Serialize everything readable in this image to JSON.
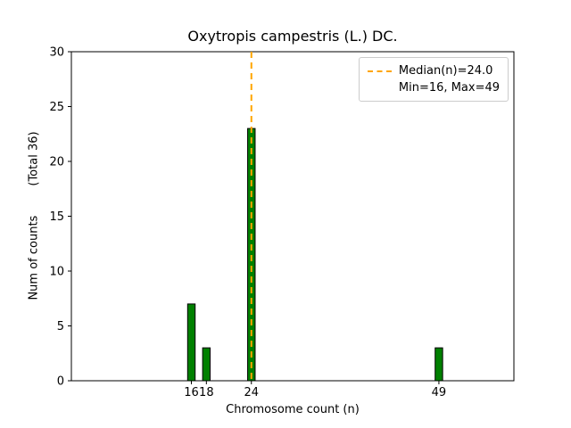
{
  "chart_data": {
    "type": "bar",
    "title": "Oxytropis campestris (L.) DC.",
    "xlabel": "Chromosome count (n)",
    "ylabel": "Num of counts        (Total 36)",
    "x": [
      16,
      18,
      24,
      49
    ],
    "values": [
      7,
      3,
      23,
      3
    ],
    "total": 36,
    "bar_width": 1,
    "bar_color": "#008000",
    "bar_edge_color": "#000000",
    "xlim": [
      0,
      59
    ],
    "ylim": [
      0,
      30
    ],
    "xticks": [
      16,
      18,
      24,
      49
    ],
    "yticks": [
      0,
      5,
      10,
      15,
      20,
      25,
      30
    ],
    "grid": false,
    "median_line": {
      "x": 24,
      "value_label": "24.0",
      "color": "#ffa500",
      "style": "dashed"
    },
    "legend": {
      "position": "upper right",
      "entries": [
        {
          "label": "Median(n)=24.0",
          "marker": "dashed-line",
          "color": "#ffa500"
        },
        {
          "label": "Min=16, Max=49",
          "marker": "none"
        }
      ]
    }
  }
}
